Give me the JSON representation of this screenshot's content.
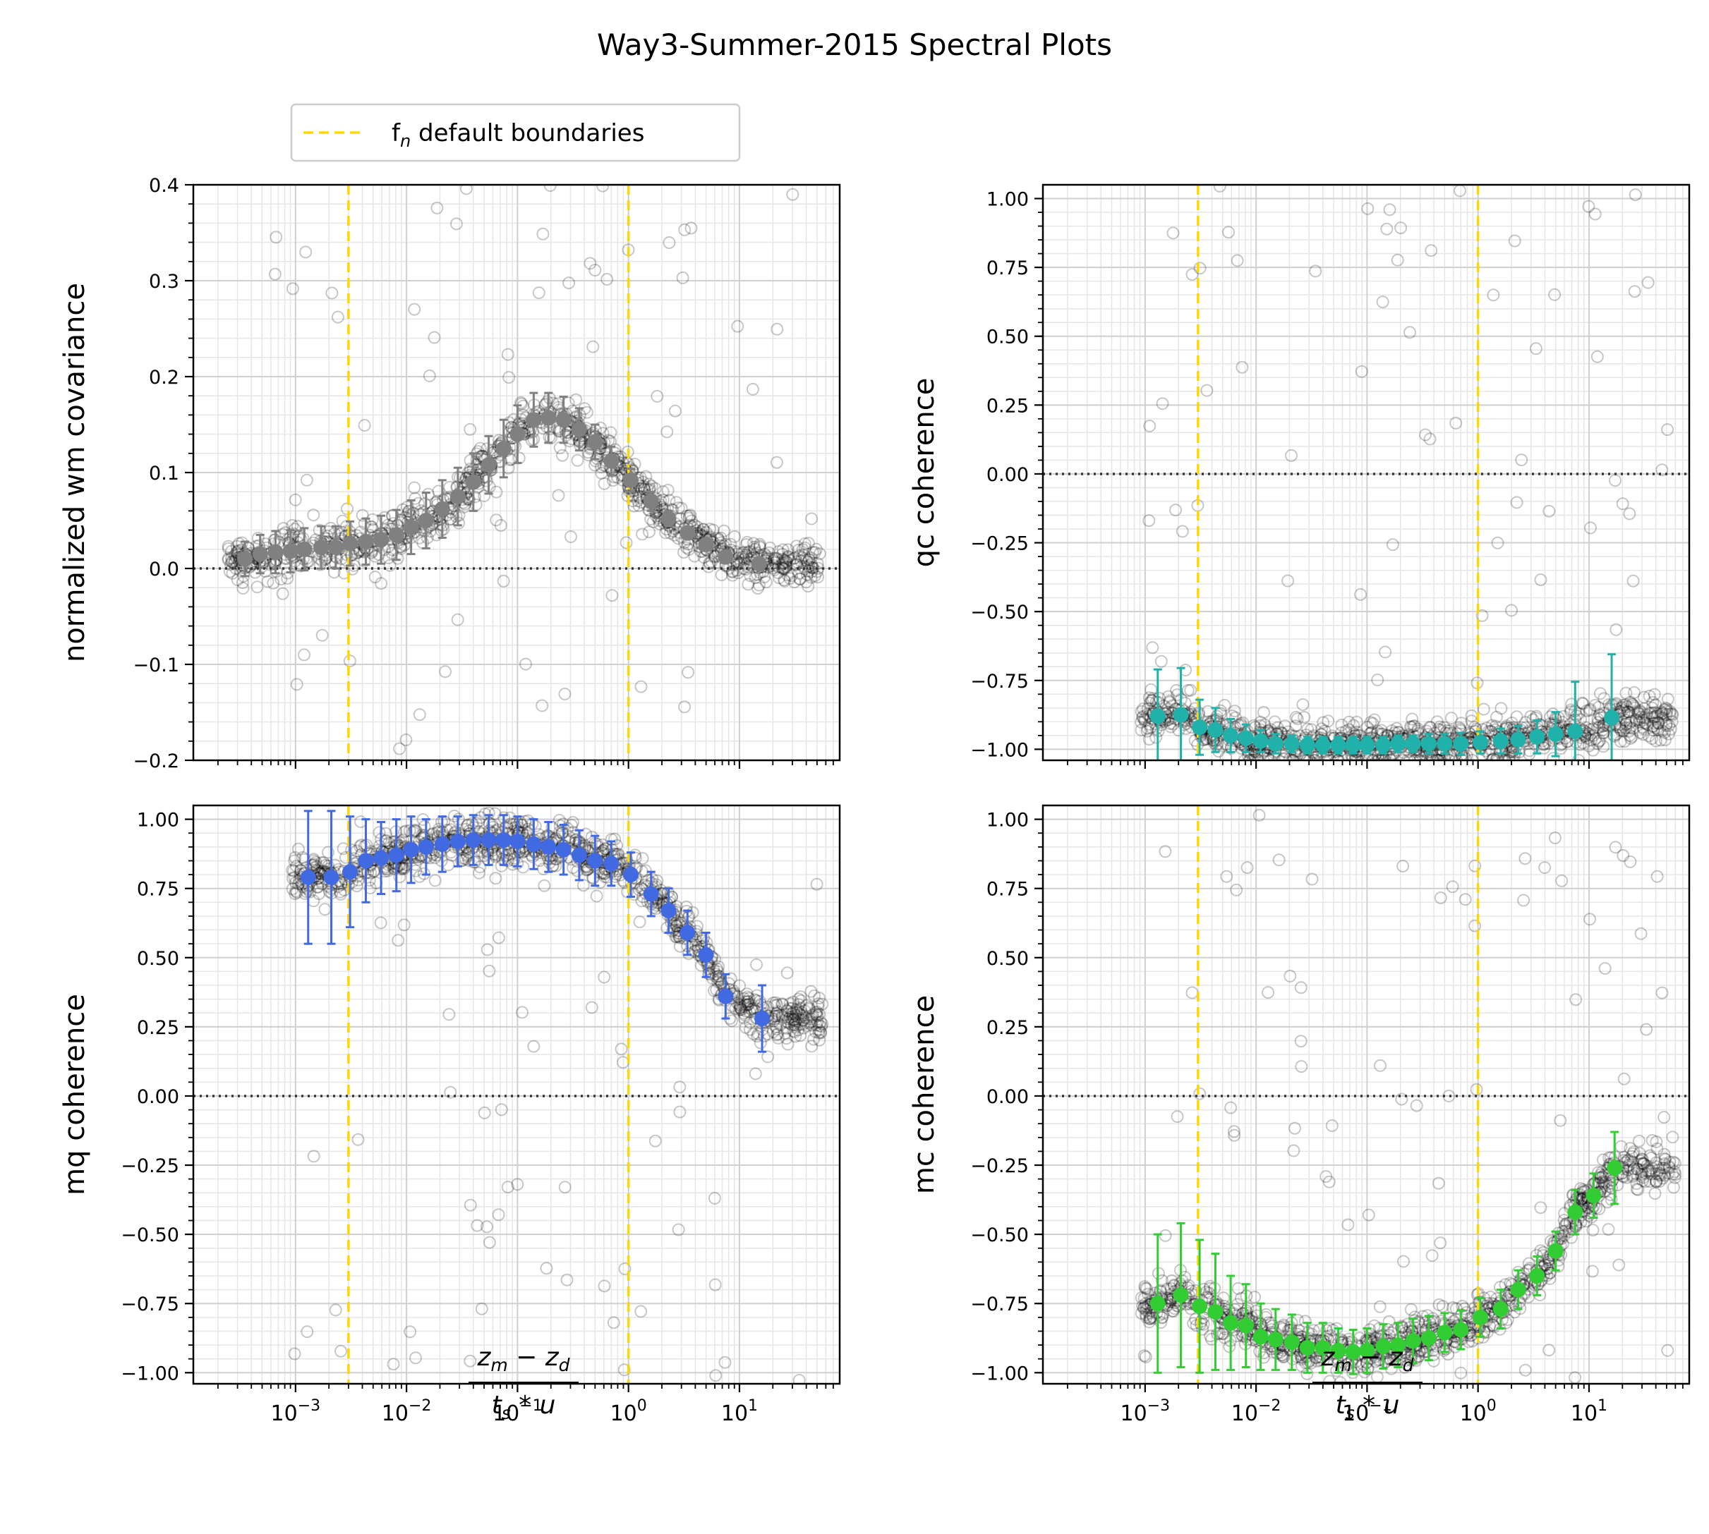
{
  "suptitle": "Way3-Summer-2015 Spectral Plots",
  "legend": {
    "label_main": "f",
    "label_sub": "n",
    "label_rest": " default boundaries",
    "line_color": "#ffd700",
    "placement": "above top-left panel"
  },
  "xlabel": {
    "num_a": "z",
    "num_a_sub": "m",
    "num_minus": " − ",
    "num_b": "z",
    "num_b_sub": "d",
    "den_a": "t",
    "den_a_sub": "s",
    "den_op": " * ",
    "den_b": "u"
  },
  "x_ticks": [
    {
      "value": 0.001,
      "base": "10",
      "exp": "−3"
    },
    {
      "value": 0.01,
      "base": "10",
      "exp": "−2"
    },
    {
      "value": 0.1,
      "base": "10",
      "exp": "−1"
    },
    {
      "value": 1,
      "base": "10",
      "exp": "0"
    },
    {
      "value": 10,
      "base": "10",
      "exp": "1"
    }
  ],
  "chart_data": [
    {
      "type": "scatter",
      "panel": "top-left",
      "ylabel": "normalized wm covariance",
      "xscale": "log",
      "xlim": [
        0.00012,
        80
      ],
      "ylim": [
        -0.2,
        0.4
      ],
      "yticks": [
        {
          "value": -0.2,
          "label": "−0.2"
        },
        {
          "value": -0.1,
          "label": "−0.1"
        },
        {
          "value": 0.0,
          "label": "0.0"
        },
        {
          "value": 0.1,
          "label": "0.1"
        },
        {
          "value": 0.2,
          "label": "0.2"
        },
        {
          "value": 0.3,
          "label": "0.3"
        },
        {
          "value": 0.4,
          "label": "0.4"
        }
      ],
      "grid": true,
      "zero_line": 0,
      "boundary_lines_x": [
        0.003,
        1
      ],
      "binned_color": "#808080",
      "binned": [
        {
          "x": 0.00035,
          "y": 0.01,
          "err": 0.018
        },
        {
          "x": 0.00048,
          "y": 0.015,
          "err": 0.02
        },
        {
          "x": 0.00066,
          "y": 0.017,
          "err": 0.022
        },
        {
          "x": 0.0009,
          "y": 0.018,
          "err": 0.022
        },
        {
          "x": 0.0012,
          "y": 0.02,
          "err": 0.022
        },
        {
          "x": 0.0017,
          "y": 0.022,
          "err": 0.022
        },
        {
          "x": 0.0023,
          "y": 0.022,
          "err": 0.022
        },
        {
          "x": 0.0031,
          "y": 0.026,
          "err": 0.023
        },
        {
          "x": 0.0043,
          "y": 0.028,
          "err": 0.024
        },
        {
          "x": 0.0059,
          "y": 0.03,
          "err": 0.025
        },
        {
          "x": 0.0081,
          "y": 0.035,
          "err": 0.026
        },
        {
          "x": 0.011,
          "y": 0.043,
          "err": 0.028
        },
        {
          "x": 0.015,
          "y": 0.05,
          "err": 0.029
        },
        {
          "x": 0.021,
          "y": 0.062,
          "err": 0.03
        },
        {
          "x": 0.029,
          "y": 0.075,
          "err": 0.03
        },
        {
          "x": 0.04,
          "y": 0.09,
          "err": 0.03
        },
        {
          "x": 0.055,
          "y": 0.108,
          "err": 0.03
        },
        {
          "x": 0.075,
          "y": 0.125,
          "err": 0.03
        },
        {
          "x": 0.1,
          "y": 0.14,
          "err": 0.03
        },
        {
          "x": 0.14,
          "y": 0.155,
          "err": 0.028
        },
        {
          "x": 0.19,
          "y": 0.157,
          "err": 0.026
        },
        {
          "x": 0.26,
          "y": 0.155,
          "err": 0.024
        },
        {
          "x": 0.36,
          "y": 0.145,
          "err": 0.022
        },
        {
          "x": 0.5,
          "y": 0.132,
          "err": 0.018
        },
        {
          "x": 0.7,
          "y": 0.112,
          "err": 0.015
        },
        {
          "x": 1.05,
          "y": 0.092,
          "err": 0.012
        },
        {
          "x": 1.6,
          "y": 0.07,
          "err": 0.01
        },
        {
          "x": 2.3,
          "y": 0.052,
          "err": 0.008
        },
        {
          "x": 3.4,
          "y": 0.037,
          "err": 0.006
        },
        {
          "x": 5.0,
          "y": 0.025,
          "err": 0.005
        },
        {
          "x": 7.5,
          "y": 0.012,
          "err": 0.004
        },
        {
          "x": 15,
          "y": 0.005,
          "err": 0.003
        }
      ]
    },
    {
      "type": "scatter",
      "panel": "top-right",
      "ylabel": "qc coherence",
      "xscale": "log",
      "xlim": [
        0.00012,
        80
      ],
      "ylim": [
        -1.04,
        1.05
      ],
      "yticks": [
        {
          "value": -1.0,
          "label": "−1.00"
        },
        {
          "value": -0.75,
          "label": "−0.75"
        },
        {
          "value": -0.5,
          "label": "−0.50"
        },
        {
          "value": -0.25,
          "label": "−0.25"
        },
        {
          "value": 0.0,
          "label": "0.00"
        },
        {
          "value": 0.25,
          "label": "0.25"
        },
        {
          "value": 0.5,
          "label": "0.50"
        },
        {
          "value": 0.75,
          "label": "0.75"
        },
        {
          "value": 1.0,
          "label": "1.00"
        }
      ],
      "grid": true,
      "zero_line": 0,
      "boundary_lines_x": [
        0.003,
        1
      ],
      "binned_color": "#20b2aa",
      "binned": [
        {
          "x": 0.0013,
          "y": -0.88,
          "err": 0.17
        },
        {
          "x": 0.0021,
          "y": -0.875,
          "err": 0.17
        },
        {
          "x": 0.0031,
          "y": -0.92,
          "err": 0.1
        },
        {
          "x": 0.0043,
          "y": -0.93,
          "err": 0.08
        },
        {
          "x": 0.0059,
          "y": -0.95,
          "err": 0.06
        },
        {
          "x": 0.0081,
          "y": -0.96,
          "err": 0.05
        },
        {
          "x": 0.011,
          "y": -0.97,
          "err": 0.04
        },
        {
          "x": 0.015,
          "y": -0.98,
          "err": 0.035
        },
        {
          "x": 0.021,
          "y": -0.98,
          "err": 0.03
        },
        {
          "x": 0.029,
          "y": -0.985,
          "err": 0.03
        },
        {
          "x": 0.04,
          "y": -0.985,
          "err": 0.03
        },
        {
          "x": 0.055,
          "y": -0.985,
          "err": 0.03
        },
        {
          "x": 0.075,
          "y": -0.985,
          "err": 0.03
        },
        {
          "x": 0.1,
          "y": -0.985,
          "err": 0.03
        },
        {
          "x": 0.14,
          "y": -0.985,
          "err": 0.03
        },
        {
          "x": 0.19,
          "y": -0.98,
          "err": 0.03
        },
        {
          "x": 0.26,
          "y": -0.98,
          "err": 0.03
        },
        {
          "x": 0.36,
          "y": -0.98,
          "err": 0.035
        },
        {
          "x": 0.5,
          "y": -0.98,
          "err": 0.035
        },
        {
          "x": 0.7,
          "y": -0.98,
          "err": 0.04
        },
        {
          "x": 1.05,
          "y": -0.975,
          "err": 0.04
        },
        {
          "x": 1.6,
          "y": -0.97,
          "err": 0.045
        },
        {
          "x": 2.3,
          "y": -0.965,
          "err": 0.05
        },
        {
          "x": 3.4,
          "y": -0.955,
          "err": 0.06
        },
        {
          "x": 5.0,
          "y": -0.945,
          "err": 0.08
        },
        {
          "x": 7.5,
          "y": -0.935,
          "err": 0.18
        },
        {
          "x": 16,
          "y": -0.885,
          "err": 0.23
        }
      ]
    },
    {
      "type": "scatter",
      "panel": "bottom-left",
      "ylabel": "mq coherence",
      "xscale": "log",
      "xlim": [
        0.00012,
        80
      ],
      "ylim": [
        -1.04,
        1.05
      ],
      "yticks": [
        {
          "value": -1.0,
          "label": "−1.00"
        },
        {
          "value": -0.75,
          "label": "−0.75"
        },
        {
          "value": -0.5,
          "label": "−0.50"
        },
        {
          "value": -0.25,
          "label": "−0.25"
        },
        {
          "value": 0.0,
          "label": "0.00"
        },
        {
          "value": 0.25,
          "label": "0.25"
        },
        {
          "value": 0.5,
          "label": "0.50"
        },
        {
          "value": 0.75,
          "label": "0.75"
        },
        {
          "value": 1.0,
          "label": "1.00"
        }
      ],
      "grid": true,
      "zero_line": 0,
      "boundary_lines_x": [
        0.003,
        1
      ],
      "binned_color": "#4169e1",
      "binned": [
        {
          "x": 0.0013,
          "y": 0.79,
          "err": 0.24
        },
        {
          "x": 0.0021,
          "y": 0.79,
          "err": 0.24
        },
        {
          "x": 0.0031,
          "y": 0.81,
          "err": 0.2
        },
        {
          "x": 0.0043,
          "y": 0.85,
          "err": 0.15
        },
        {
          "x": 0.0059,
          "y": 0.86,
          "err": 0.13
        },
        {
          "x": 0.0081,
          "y": 0.87,
          "err": 0.13
        },
        {
          "x": 0.011,
          "y": 0.89,
          "err": 0.12
        },
        {
          "x": 0.015,
          "y": 0.9,
          "err": 0.1
        },
        {
          "x": 0.021,
          "y": 0.91,
          "err": 0.1
        },
        {
          "x": 0.029,
          "y": 0.92,
          "err": 0.09
        },
        {
          "x": 0.04,
          "y": 0.925,
          "err": 0.09
        },
        {
          "x": 0.055,
          "y": 0.925,
          "err": 0.09
        },
        {
          "x": 0.075,
          "y": 0.925,
          "err": 0.09
        },
        {
          "x": 0.1,
          "y": 0.92,
          "err": 0.09
        },
        {
          "x": 0.14,
          "y": 0.91,
          "err": 0.09
        },
        {
          "x": 0.19,
          "y": 0.9,
          "err": 0.09
        },
        {
          "x": 0.26,
          "y": 0.89,
          "err": 0.09
        },
        {
          "x": 0.36,
          "y": 0.87,
          "err": 0.09
        },
        {
          "x": 0.5,
          "y": 0.85,
          "err": 0.09
        },
        {
          "x": 0.7,
          "y": 0.84,
          "err": 0.08
        },
        {
          "x": 1.05,
          "y": 0.8,
          "err": 0.08
        },
        {
          "x": 1.6,
          "y": 0.73,
          "err": 0.08
        },
        {
          "x": 2.3,
          "y": 0.67,
          "err": 0.08
        },
        {
          "x": 3.4,
          "y": 0.59,
          "err": 0.08
        },
        {
          "x": 5.0,
          "y": 0.51,
          "err": 0.08
        },
        {
          "x": 7.5,
          "y": 0.36,
          "err": 0.08
        },
        {
          "x": 16,
          "y": 0.28,
          "err": 0.12
        }
      ]
    },
    {
      "type": "scatter",
      "panel": "bottom-right",
      "ylabel": "mc coherence",
      "xscale": "log",
      "xlim": [
        0.00012,
        80
      ],
      "ylim": [
        -1.04,
        1.05
      ],
      "yticks": [
        {
          "value": -1.0,
          "label": "−1.00"
        },
        {
          "value": -0.75,
          "label": "−0.75"
        },
        {
          "value": -0.5,
          "label": "−0.50"
        },
        {
          "value": -0.25,
          "label": "−0.25"
        },
        {
          "value": 0.0,
          "label": "0.00"
        },
        {
          "value": 0.25,
          "label": "0.25"
        },
        {
          "value": 0.5,
          "label": "0.50"
        },
        {
          "value": 0.75,
          "label": "0.75"
        },
        {
          "value": 1.0,
          "label": "1.00"
        }
      ],
      "grid": true,
      "zero_line": 0,
      "boundary_lines_x": [
        0.003,
        1
      ],
      "binned_color": "#32cd32",
      "binned": [
        {
          "x": 0.0013,
          "y": -0.75,
          "err": 0.25
        },
        {
          "x": 0.0021,
          "y": -0.72,
          "err": 0.26
        },
        {
          "x": 0.0031,
          "y": -0.76,
          "err": 0.24
        },
        {
          "x": 0.0043,
          "y": -0.78,
          "err": 0.21
        },
        {
          "x": 0.0059,
          "y": -0.82,
          "err": 0.17
        },
        {
          "x": 0.0081,
          "y": -0.83,
          "err": 0.15
        },
        {
          "x": 0.011,
          "y": -0.87,
          "err": 0.12
        },
        {
          "x": 0.015,
          "y": -0.88,
          "err": 0.11
        },
        {
          "x": 0.021,
          "y": -0.89,
          "err": 0.1
        },
        {
          "x": 0.029,
          "y": -0.91,
          "err": 0.09
        },
        {
          "x": 0.04,
          "y": -0.91,
          "err": 0.09
        },
        {
          "x": 0.055,
          "y": -0.92,
          "err": 0.08
        },
        {
          "x": 0.075,
          "y": -0.925,
          "err": 0.08
        },
        {
          "x": 0.1,
          "y": -0.92,
          "err": 0.08
        },
        {
          "x": 0.14,
          "y": -0.905,
          "err": 0.08
        },
        {
          "x": 0.19,
          "y": -0.9,
          "err": 0.08
        },
        {
          "x": 0.26,
          "y": -0.885,
          "err": 0.08
        },
        {
          "x": 0.36,
          "y": -0.875,
          "err": 0.08
        },
        {
          "x": 0.5,
          "y": -0.855,
          "err": 0.07
        },
        {
          "x": 0.7,
          "y": -0.845,
          "err": 0.07
        },
        {
          "x": 1.05,
          "y": -0.8,
          "err": 0.07
        },
        {
          "x": 1.6,
          "y": -0.77,
          "err": 0.07
        },
        {
          "x": 2.3,
          "y": -0.7,
          "err": 0.07
        },
        {
          "x": 3.4,
          "y": -0.65,
          "err": 0.07
        },
        {
          "x": 5.0,
          "y": -0.56,
          "err": 0.07
        },
        {
          "x": 7.5,
          "y": -0.42,
          "err": 0.08
        },
        {
          "x": 11,
          "y": -0.36,
          "err": 0.08
        },
        {
          "x": 17,
          "y": -0.26,
          "err": 0.13
        }
      ]
    }
  ]
}
